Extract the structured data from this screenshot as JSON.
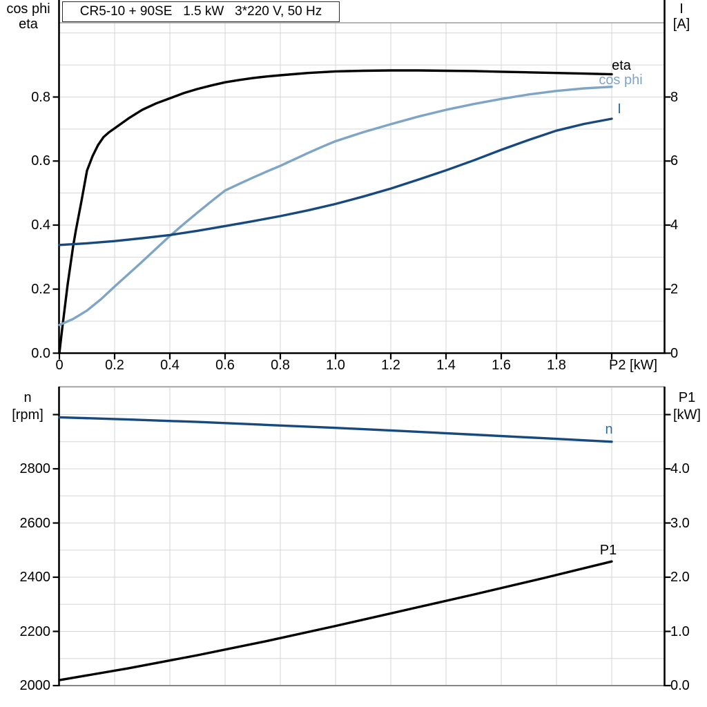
{
  "title_box": {
    "text": "CR5-10 + 90SE   1.5 kW   3*220 V, 50 Hz"
  },
  "corner_labels": {
    "top_left": [
      "cos phi",
      "eta"
    ],
    "top_right": [
      "I",
      "[A]"
    ],
    "bottom_left": [
      "n",
      "[rpm]"
    ],
    "bottom_right": [
      "P1",
      "[kW]"
    ]
  },
  "colors": {
    "eta": "#000000",
    "cos_phi": "#7ea4c6",
    "current": "#17497f",
    "speed": "#17497f",
    "p1": "#000000",
    "curve_label_blue": "#2e6ba9",
    "gridline": "#d3d6d9",
    "frame_top": "#9b9b9b",
    "frame_gray": "#848484",
    "axis": "#000000"
  },
  "chart_data": [
    {
      "type": "line",
      "panel": "top",
      "title": "CR5-10 + 90SE  1.5 kW  3*220 V, 50 Hz",
      "xlabel": "P2 [kW]",
      "x_range": [
        0,
        2.19
      ],
      "grid": true,
      "legend_position": "inline-labels",
      "left_axis": {
        "title": "cos phi / eta",
        "range": [
          0,
          1.03
        ],
        "tick_step": 0.2,
        "minor_grid_step": 0.1
      },
      "right_axis": {
        "title": "I [A]",
        "range": [
          0,
          10.3
        ],
        "tick_step": 2
      },
      "x_ticks": [
        {
          "label": "0",
          "value": 0
        },
        {
          "label": "0.2",
          "value": 0.2
        },
        {
          "label": "0.4",
          "value": 0.4
        },
        {
          "label": "0.6",
          "value": 0.6
        },
        {
          "label": "0.8",
          "value": 0.8
        },
        {
          "label": "1.0",
          "value": 1.0
        },
        {
          "label": "1.2",
          "value": 1.2
        },
        {
          "label": "1.4",
          "value": 1.4
        },
        {
          "label": "1.6",
          "value": 1.6
        },
        {
          "label": "1.8",
          "value": 1.8
        },
        {
          "label": "",
          "value": 2.0
        }
      ],
      "left_ticks": [
        {
          "label": "0.0",
          "value": 0.0
        },
        {
          "label": "0.2",
          "value": 0.2
        },
        {
          "label": "0.4",
          "value": 0.4
        },
        {
          "label": "0.6",
          "value": 0.6
        },
        {
          "label": "0.8",
          "value": 0.8
        }
      ],
      "right_ticks": [
        {
          "label": "0",
          "value": 0
        },
        {
          "label": "2",
          "value": 2
        },
        {
          "label": "4",
          "value": 4
        },
        {
          "label": "6",
          "value": 6
        },
        {
          "label": "8",
          "value": 8
        }
      ],
      "series": [
        {
          "name": "eta",
          "axis": "left",
          "color": "#000000",
          "points": [
            [
              0,
              0
            ],
            [
              0.01,
              0.075
            ],
            [
              0.02,
              0.145
            ],
            [
              0.03,
              0.215
            ],
            [
              0.04,
              0.275
            ],
            [
              0.05,
              0.335
            ],
            [
              0.06,
              0.385
            ],
            [
              0.08,
              0.475
            ],
            [
              0.1,
              0.57
            ],
            [
              0.12,
              0.615
            ],
            [
              0.14,
              0.65
            ],
            [
              0.16,
              0.675
            ],
            [
              0.18,
              0.69
            ],
            [
              0.2,
              0.702
            ],
            [
              0.25,
              0.733
            ],
            [
              0.3,
              0.76
            ],
            [
              0.35,
              0.78
            ],
            [
              0.4,
              0.796
            ],
            [
              0.45,
              0.812
            ],
            [
              0.5,
              0.825
            ],
            [
              0.55,
              0.836
            ],
            [
              0.6,
              0.846
            ],
            [
              0.65,
              0.853
            ],
            [
              0.7,
              0.859
            ],
            [
              0.75,
              0.864
            ],
            [
              0.8,
              0.868
            ],
            [
              0.9,
              0.875
            ],
            [
              1.0,
              0.88
            ],
            [
              1.1,
              0.882
            ],
            [
              1.2,
              0.883
            ],
            [
              1.3,
              0.883
            ],
            [
              1.4,
              0.882
            ],
            [
              1.5,
              0.881
            ],
            [
              1.6,
              0.879
            ],
            [
              1.7,
              0.877
            ],
            [
              1.8,
              0.875
            ],
            [
              1.9,
              0.873
            ],
            [
              2.0,
              0.871
            ]
          ]
        },
        {
          "name": "cos phi",
          "axis": "left",
          "color": "#7ea4c6",
          "points": [
            [
              0,
              0.088
            ],
            [
              0.05,
              0.107
            ],
            [
              0.1,
              0.133
            ],
            [
              0.15,
              0.168
            ],
            [
              0.2,
              0.208
            ],
            [
              0.25,
              0.247
            ],
            [
              0.3,
              0.286
            ],
            [
              0.35,
              0.326
            ],
            [
              0.4,
              0.366
            ],
            [
              0.45,
              0.403
            ],
            [
              0.5,
              0.439
            ],
            [
              0.55,
              0.474
            ],
            [
              0.6,
              0.508
            ],
            [
              0.65,
              0.528
            ],
            [
              0.7,
              0.548
            ],
            [
              0.75,
              0.567
            ],
            [
              0.8,
              0.585
            ],
            [
              0.85,
              0.605
            ],
            [
              0.9,
              0.625
            ],
            [
              0.95,
              0.644
            ],
            [
              1.0,
              0.662
            ],
            [
              1.1,
              0.69
            ],
            [
              1.2,
              0.715
            ],
            [
              1.3,
              0.739
            ],
            [
              1.4,
              0.76
            ],
            [
              1.5,
              0.778
            ],
            [
              1.6,
              0.794
            ],
            [
              1.7,
              0.808
            ],
            [
              1.8,
              0.819
            ],
            [
              1.9,
              0.827
            ],
            [
              2.0,
              0.832
            ]
          ]
        },
        {
          "name": "I",
          "axis": "right",
          "color": "#17497f",
          "points": [
            [
              0,
              3.38
            ],
            [
              0.1,
              3.43
            ],
            [
              0.2,
              3.5
            ],
            [
              0.3,
              3.59
            ],
            [
              0.4,
              3.69
            ],
            [
              0.5,
              3.82
            ],
            [
              0.6,
              3.97
            ],
            [
              0.7,
              4.12
            ],
            [
              0.8,
              4.28
            ],
            [
              0.9,
              4.46
            ],
            [
              1.0,
              4.66
            ],
            [
              1.1,
              4.89
            ],
            [
              1.2,
              5.14
            ],
            [
              1.3,
              5.42
            ],
            [
              1.4,
              5.71
            ],
            [
              1.5,
              6.02
            ],
            [
              1.6,
              6.35
            ],
            [
              1.7,
              6.66
            ],
            [
              1.8,
              6.95
            ],
            [
              1.9,
              7.16
            ],
            [
              2.0,
              7.32
            ]
          ]
        }
      ]
    },
    {
      "type": "line",
      "panel": "bottom",
      "xlabel": "",
      "x_range": [
        0,
        2.19
      ],
      "grid": true,
      "legend_position": "inline-labels",
      "left_axis": {
        "title": "n [rpm]",
        "range": [
          1940,
          3100
        ],
        "tick_step": 200,
        "minor_grid_step": 100
      },
      "right_axis": {
        "title": "P1 [kW]",
        "range": [
          0,
          5.5
        ],
        "tick_step": 1.0,
        "minor_grid_step": 0.5
      },
      "x_ticks": null,
      "left_ticks": [
        {
          "label": "2000",
          "value": 2000
        },
        {
          "label": "2200",
          "value": 2200
        },
        {
          "label": "2400",
          "value": 2400
        },
        {
          "label": "2600",
          "value": 2600
        },
        {
          "label": "2800",
          "value": 2800
        },
        {
          "label": "",
          "value": 3000
        }
      ],
      "right_ticks": [
        {
          "label": "0.0",
          "value": 0.0
        },
        {
          "label": "1.0",
          "value": 1.0
        },
        {
          "label": "2.0",
          "value": 2.0
        },
        {
          "label": "3.0",
          "value": 3.0
        },
        {
          "label": "4.0",
          "value": 4.0
        },
        {
          "label": "",
          "value": 5.0
        }
      ],
      "series": [
        {
          "name": "n",
          "axis": "left",
          "color": "#17497f",
          "points": [
            [
              0,
              2990
            ],
            [
              0.25,
              2982
            ],
            [
              0.5,
              2973
            ],
            [
              0.75,
              2962
            ],
            [
              1.0,
              2951
            ],
            [
              1.25,
              2939
            ],
            [
              1.5,
              2926
            ],
            [
              1.75,
              2913
            ],
            [
              2.0,
              2900
            ]
          ]
        },
        {
          "name": "P1",
          "axis": "right",
          "color": "#000000",
          "points": [
            [
              0,
              0.1
            ],
            [
              0.25,
              0.32
            ],
            [
              0.5,
              0.56
            ],
            [
              0.75,
              0.82
            ],
            [
              1.0,
              1.1
            ],
            [
              1.25,
              1.39
            ],
            [
              1.5,
              1.68
            ],
            [
              1.75,
              1.98
            ],
            [
              2.0,
              2.29
            ]
          ]
        }
      ]
    }
  ]
}
